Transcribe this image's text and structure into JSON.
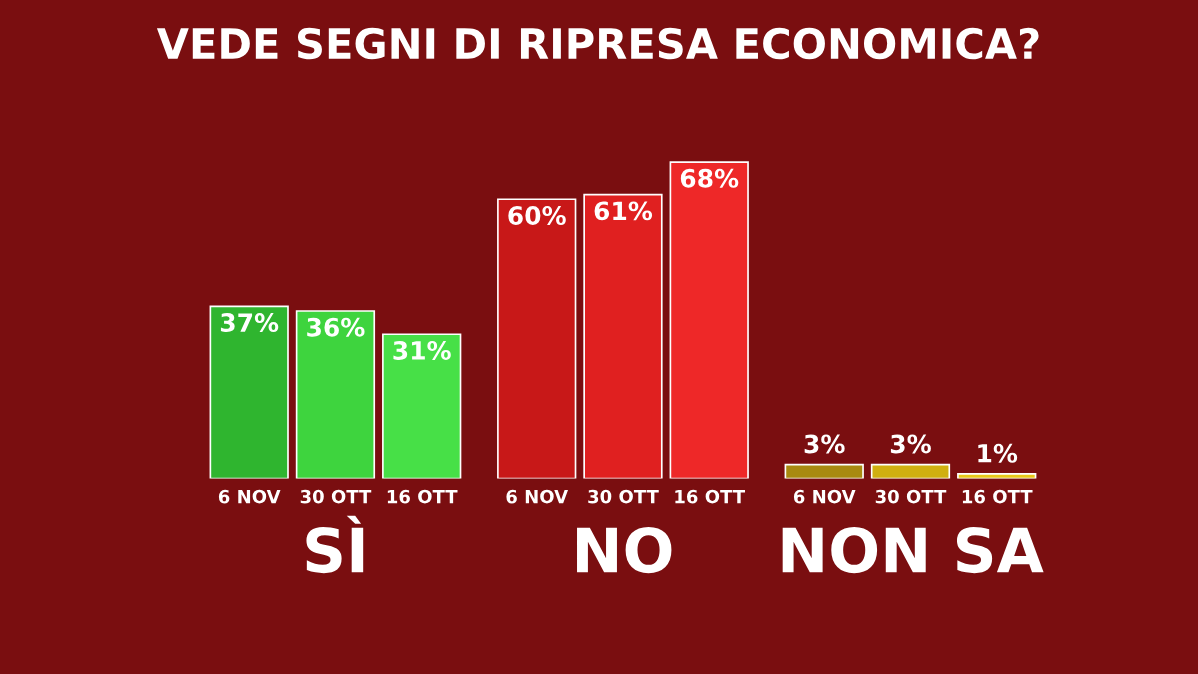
{
  "chart_data": {
    "type": "bar",
    "title": "VEDE SEGNI DI RIPRESA ECONOMICA?",
    "categories": [
      "SÌ",
      "NO",
      "NON SA"
    ],
    "series": [
      {
        "name": "6 NOV",
        "colors": [
          "#2fb52f",
          "#c81818",
          "#a88a10"
        ],
        "values": [
          37,
          60,
          3
        ],
        "value_labels": [
          "37%",
          "60%",
          "3%"
        ]
      },
      {
        "name": "30 OTT",
        "colors": [
          "#3ed43e",
          "#e02020",
          "#d0b010"
        ],
        "values": [
          36,
          61,
          3
        ],
        "value_labels": [
          "36%",
          "61%",
          "3%"
        ]
      },
      {
        "name": "16 OTT",
        "colors": [
          "#47e047",
          "#ee2828",
          "#e8c818"
        ],
        "values": [
          31,
          68,
          1
        ],
        "value_labels": [
          "31%",
          "68%",
          "1%"
        ]
      }
    ],
    "legend": false
  }
}
